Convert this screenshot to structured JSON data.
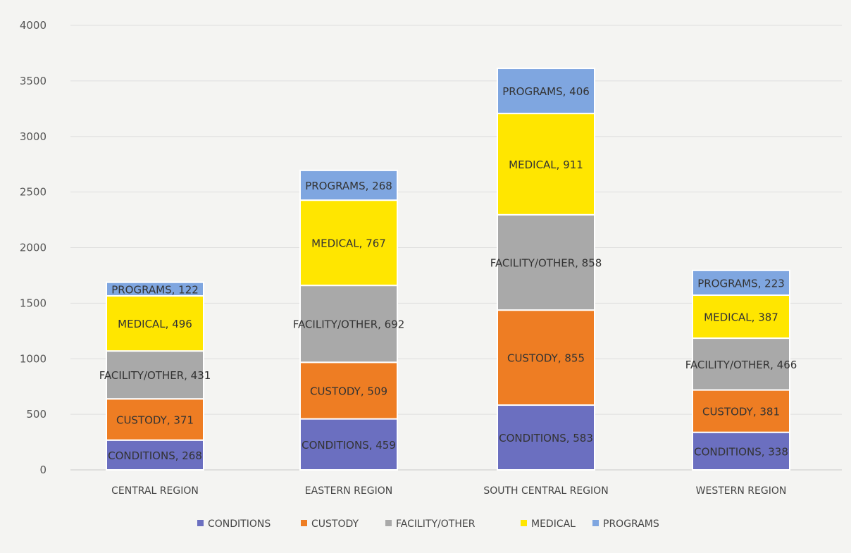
{
  "chart_data": {
    "type": "bar",
    "stacked": true,
    "title": "",
    "xlabel": "",
    "ylabel": "",
    "ylim": [
      0,
      4000
    ],
    "yticks": [
      0,
      500,
      1000,
      1500,
      2000,
      2500,
      3000,
      3500,
      4000
    ],
    "grid": true,
    "legend_position": "bottom",
    "categories": [
      "CENTRAL REGION",
      "EASTERN REGION",
      "SOUTH CENTRAL REGION",
      "WESTERN REGION"
    ],
    "series": [
      {
        "name": "CONDITIONS",
        "color": "#6b6fc0",
        "values": [
          268,
          459,
          583,
          338
        ]
      },
      {
        "name": "CUSTODY",
        "color": "#ee7d23",
        "values": [
          371,
          509,
          855,
          381
        ]
      },
      {
        "name": "FACILITY/OTHER",
        "color": "#a9a9a9",
        "values": [
          431,
          692,
          858,
          466
        ]
      },
      {
        "name": "MEDICAL",
        "color": "#ffe600",
        "values": [
          496,
          767,
          911,
          387
        ]
      },
      {
        "name": "PROGRAMS",
        "color": "#7fa6e0",
        "values": [
          122,
          268,
          406,
          223
        ]
      }
    ]
  }
}
